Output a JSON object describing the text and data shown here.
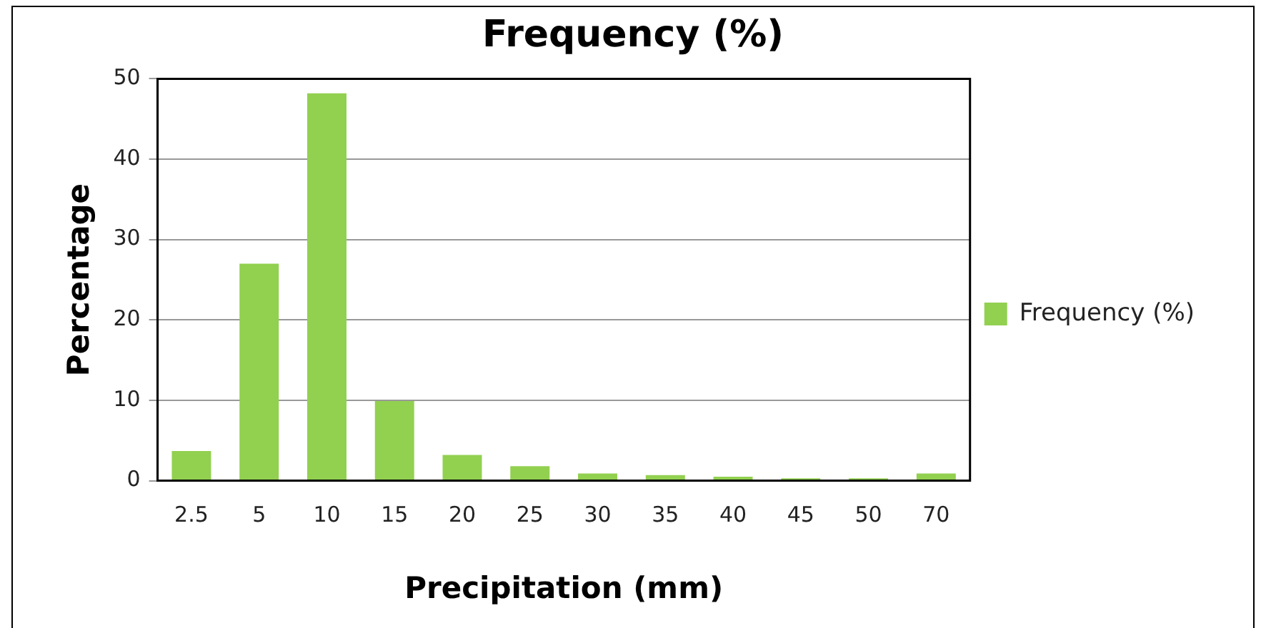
{
  "chart_data": {
    "type": "bar",
    "title": "Frequency (%)",
    "xlabel": "Precipitation (mm)",
    "ylabel": "Percentage",
    "categories": [
      "2.5",
      "5",
      "10",
      "15",
      "20",
      "25",
      "30",
      "35",
      "40",
      "45",
      "50",
      "70"
    ],
    "series": [
      {
        "name": "Frequency (%)",
        "color": "#92d050",
        "values": [
          3.7,
          27,
          48.2,
          9.9,
          3.2,
          1.8,
          0.9,
          0.7,
          0.5,
          0.3,
          0.3,
          0.9
        ]
      }
    ],
    "ylim": [
      0,
      50
    ],
    "yticks": [
      0,
      10,
      20,
      30,
      40,
      50
    ],
    "grid": "y",
    "legend": "right"
  }
}
